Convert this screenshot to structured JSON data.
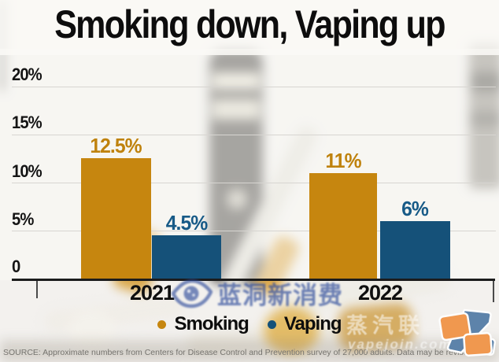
{
  "title": "Smoking down, Vaping up",
  "chart_data": {
    "type": "bar",
    "categories": [
      "2021",
      "2022"
    ],
    "series": [
      {
        "name": "Smoking",
        "color": "#c6860f",
        "values": [
          12.5,
          11
        ]
      },
      {
        "name": "Vaping",
        "color": "#155179",
        "values": [
          4.5,
          6
        ]
      }
    ],
    "bar_labels": [
      [
        "12.5%",
        "4.5%"
      ],
      [
        "11%",
        "6%"
      ]
    ],
    "label_colors": [
      "#bf820d",
      "#175a87"
    ],
    "y_ticks": [
      "20%",
      "15%",
      "10%",
      "5%",
      "0"
    ],
    "ylim": [
      0,
      22.5
    ],
    "grid": true,
    "legend_position": "bottom",
    "title": "Smoking down, Vaping up"
  },
  "legend": {
    "items": [
      {
        "label": "Smoking",
        "color": "#c6860f"
      },
      {
        "label": "Vaping",
        "color": "#155179"
      }
    ]
  },
  "source": "SOURCE: Approximate numbers from Centers for Disease Control and Prevention survey of 27,000 adults. Data may be revised",
  "watermarks": {
    "center_text": "蓝洞新消费",
    "bottom_right_text": "蒸汽联",
    "bottom_right_url": "vapejoin.com"
  }
}
